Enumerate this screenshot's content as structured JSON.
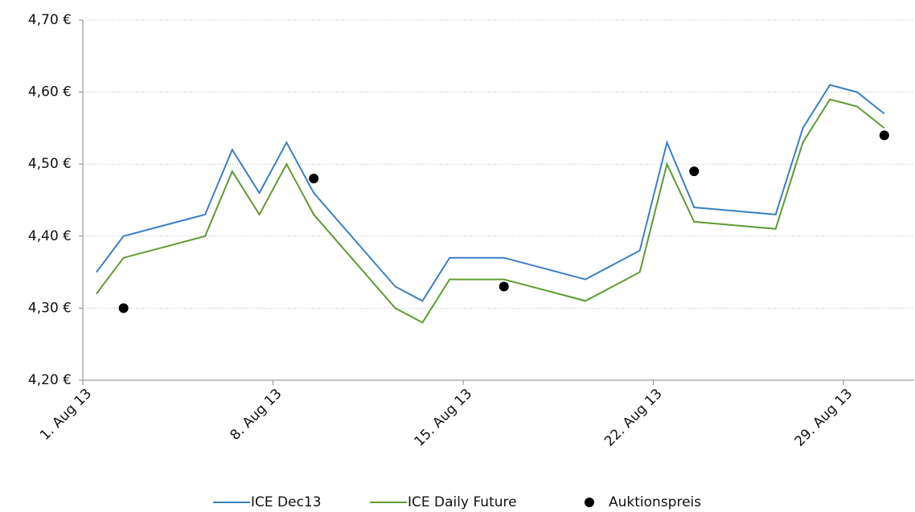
{
  "chart_data": {
    "type": "line",
    "xlim": [
      "2013-08-01",
      "2013-08-31"
    ],
    "xticks": [
      {
        "value": "2013-08-01",
        "label": "1. Aug 13"
      },
      {
        "value": "2013-08-08",
        "label": "8. Aug 13"
      },
      {
        "value": "2013-08-15",
        "label": "15. Aug 13"
      },
      {
        "value": "2013-08-22",
        "label": "22. Aug 13"
      },
      {
        "value": "2013-08-29",
        "label": "29. Aug 13"
      }
    ],
    "ylim": [
      4.2,
      4.7
    ],
    "yticks": [
      {
        "value": 4.2,
        "label": "4,20 €"
      },
      {
        "value": 4.3,
        "label": "4,30 €"
      },
      {
        "value": 4.4,
        "label": "4,40 €"
      },
      {
        "value": 4.5,
        "label": "4,50 €"
      },
      {
        "value": 4.6,
        "label": "4,60 €"
      },
      {
        "value": 4.7,
        "label": "4,70 €"
      }
    ],
    "grid": true,
    "legend": "bottom",
    "series": [
      {
        "name": "ICE Dec13",
        "color": "#3c7ec2",
        "style": "line",
        "x": [
          "2013-08-01",
          "2013-08-02",
          "2013-08-05",
          "2013-08-06",
          "2013-08-07",
          "2013-08-08",
          "2013-08-09",
          "2013-08-12",
          "2013-08-13",
          "2013-08-14",
          "2013-08-15",
          "2013-08-16",
          "2013-08-19",
          "2013-08-21",
          "2013-08-22",
          "2013-08-23",
          "2013-08-26",
          "2013-08-27",
          "2013-08-28",
          "2013-08-29",
          "2013-08-30"
        ],
        "values": [
          4.35,
          4.4,
          4.43,
          4.52,
          4.46,
          4.53,
          4.46,
          4.33,
          4.31,
          4.37,
          4.37,
          4.37,
          4.34,
          4.38,
          4.53,
          4.44,
          4.43,
          4.55,
          4.61,
          4.6,
          4.57
        ]
      },
      {
        "name": "ICE Daily Future",
        "color": "#5e9a32",
        "style": "line",
        "x": [
          "2013-08-01",
          "2013-08-02",
          "2013-08-05",
          "2013-08-06",
          "2013-08-07",
          "2013-08-08",
          "2013-08-09",
          "2013-08-12",
          "2013-08-13",
          "2013-08-14",
          "2013-08-15",
          "2013-08-16",
          "2013-08-19",
          "2013-08-21",
          "2013-08-22",
          "2013-08-23",
          "2013-08-26",
          "2013-08-27",
          "2013-08-28",
          "2013-08-29",
          "2013-08-30"
        ],
        "values": [
          4.32,
          4.37,
          4.4,
          4.49,
          4.43,
          4.5,
          4.43,
          4.3,
          4.28,
          4.34,
          4.34,
          4.34,
          4.31,
          4.35,
          4.5,
          4.42,
          4.41,
          4.53,
          4.59,
          4.58,
          4.55
        ]
      },
      {
        "name": "Auktionspreis",
        "color": "#000000",
        "style": "marker",
        "x": [
          "2013-08-02",
          "2013-08-09",
          "2013-08-16",
          "2013-08-23",
          "2013-08-30"
        ],
        "values": [
          4.3,
          4.48,
          4.33,
          4.49,
          4.54
        ]
      }
    ]
  }
}
